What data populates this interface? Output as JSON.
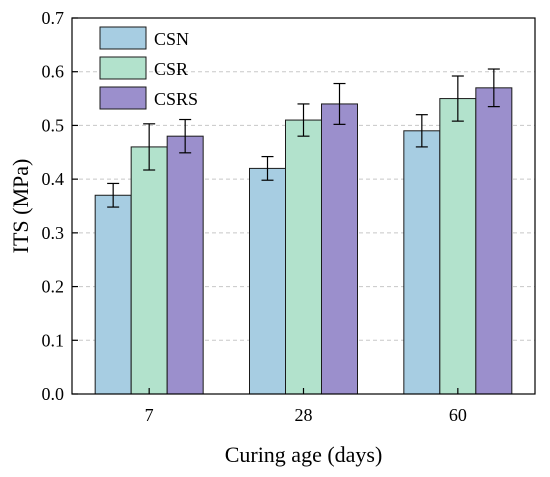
{
  "chart_data": {
    "type": "bar",
    "xlabel": "Curing age (days)",
    "ylabel": "ITS (MPa)",
    "ylim": [
      0,
      0.7
    ],
    "yticks": [
      0.0,
      0.1,
      0.2,
      0.3,
      0.4,
      0.5,
      0.6,
      0.7
    ],
    "ytick_labels": [
      "0.0",
      "0.1",
      "0.2",
      "0.3",
      "0.4",
      "0.5",
      "0.6",
      "0.7"
    ],
    "categories": [
      "7",
      "28",
      "60"
    ],
    "grid": "horizontal dashed",
    "legend_position": "top-left",
    "series": [
      {
        "name": "CSN",
        "color": "#a7cde2",
        "values": [
          0.37,
          0.42,
          0.49
        ],
        "errors": [
          0.022,
          0.022,
          0.03
        ]
      },
      {
        "name": "CSR",
        "color": "#b2e2cc",
        "values": [
          0.46,
          0.51,
          0.55
        ],
        "errors": [
          0.043,
          0.03,
          0.042
        ]
      },
      {
        "name": "CSRS",
        "color": "#9b8fcc",
        "values": [
          0.48,
          0.54,
          0.57
        ],
        "errors": [
          0.031,
          0.038,
          0.035
        ]
      }
    ]
  }
}
